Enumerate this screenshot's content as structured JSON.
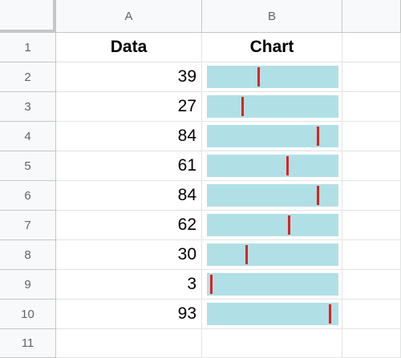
{
  "columns": [
    "A",
    "B"
  ],
  "row_numbers": [
    "1",
    "2",
    "3",
    "4",
    "5",
    "6",
    "7",
    "8",
    "9",
    "10",
    "11"
  ],
  "header": {
    "data": "Data",
    "chart": "Chart"
  },
  "values": [
    "39",
    "27",
    "84",
    "61",
    "84",
    "62",
    "30",
    "3",
    "93"
  ],
  "chart_data": {
    "type": "bar",
    "values": [
      39,
      27,
      84,
      61,
      84,
      62,
      30,
      3,
      93
    ],
    "xlim": [
      0,
      100
    ],
    "colors": {
      "bar": "#b0e0e6",
      "marker": "#dd2222"
    }
  }
}
